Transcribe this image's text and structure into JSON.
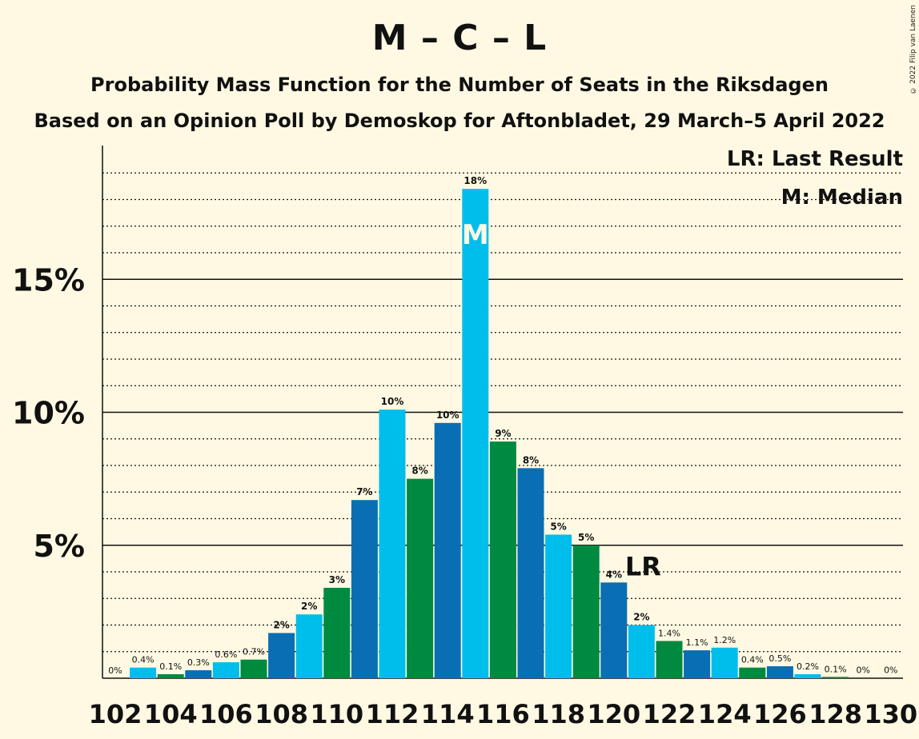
{
  "chart_data": {
    "type": "bar",
    "title": "M – C – L",
    "subtitle": "Probability Mass Function for the Number of Seats in the Riksdagen",
    "subtitle2": "Based on an Opinion Poll by Demoskop for Aftonbladet, 29 March–5 April 2022",
    "copyright": "© 2022 Filip van Laenen",
    "legend": [
      "LR: Last Result",
      "M: Median"
    ],
    "legend_position": "top-right",
    "seats": [
      102,
      103,
      104,
      105,
      106,
      107,
      108,
      109,
      110,
      111,
      112,
      113,
      114,
      115,
      116,
      117,
      118,
      119,
      120,
      121,
      122,
      123,
      124,
      125,
      126,
      127,
      128,
      129,
      130
    ],
    "values": [
      0,
      0.4,
      0.15,
      0.3,
      0.6,
      0.7,
      1.7,
      2.4,
      3.4,
      6.7,
      10.1,
      7.5,
      9.6,
      18.4,
      8.9,
      7.9,
      5.4,
      5.0,
      3.6,
      2.0,
      1.4,
      1.05,
      1.15,
      0.4,
      0.45,
      0.15,
      0.05,
      0.02,
      0.01
    ],
    "labels": [
      "0%",
      "0.4%",
      "0.1%",
      "0.3%",
      "0.6%",
      "0.7%",
      "2%",
      "2%",
      "3%",
      "7%",
      "10%",
      "8%",
      "10%",
      "18%",
      "9%",
      "8%",
      "5%",
      "5%",
      "4%",
      "2%",
      "1.4%",
      "1.1%",
      "1.2%",
      "0.4%",
      "0.5%",
      "0.2%",
      "0.1%",
      "0%",
      "0%"
    ],
    "x_tick_labels": [
      "102",
      "104",
      "106",
      "108",
      "110",
      "112",
      "114",
      "116",
      "118",
      "120",
      "122",
      "124",
      "126",
      "128",
      "130"
    ],
    "y_tick_labels": [
      "5%",
      "10%",
      "15%"
    ],
    "y_ticks": [
      5,
      10,
      15
    ],
    "ylim": [
      0,
      20
    ],
    "median_seat": 115,
    "median_marker": "M",
    "last_result_seat": 121,
    "last_result_marker": "LR",
    "grid": "dotted every 1%, solid every 5%",
    "colors": {
      "green": "#008A40",
      "blue": "#0A6EB4",
      "cyan": "#00BEEB",
      "background": "#FFF9E3"
    }
  }
}
